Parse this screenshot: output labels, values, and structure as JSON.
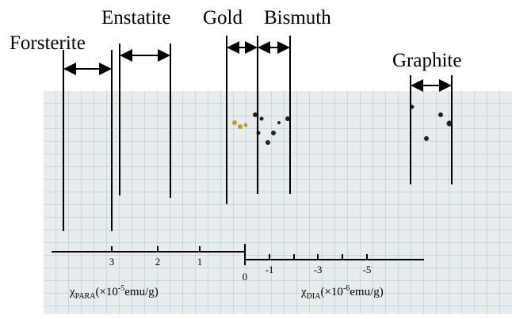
{
  "labels": [
    "Forsterite",
    "Enstatite",
    "Gold",
    "Bismuth",
    "Graphite"
  ],
  "para_axis": {
    "ticks": [
      "3",
      "2",
      "1"
    ],
    "label": {
      "symbol": "χ",
      "subscript": "PARA",
      "prefix": "(×10",
      "exponent": "-5",
      "suffix": "emu/g)"
    }
  },
  "zero": "0",
  "dia_axis": {
    "ticks": [
      "-1",
      "-3",
      "-5"
    ],
    "label": {
      "symbol": "χ",
      "subscript": "DIA",
      "prefix": "(×10",
      "exponent": "-6",
      "suffix": "emu/g)"
    }
  }
}
